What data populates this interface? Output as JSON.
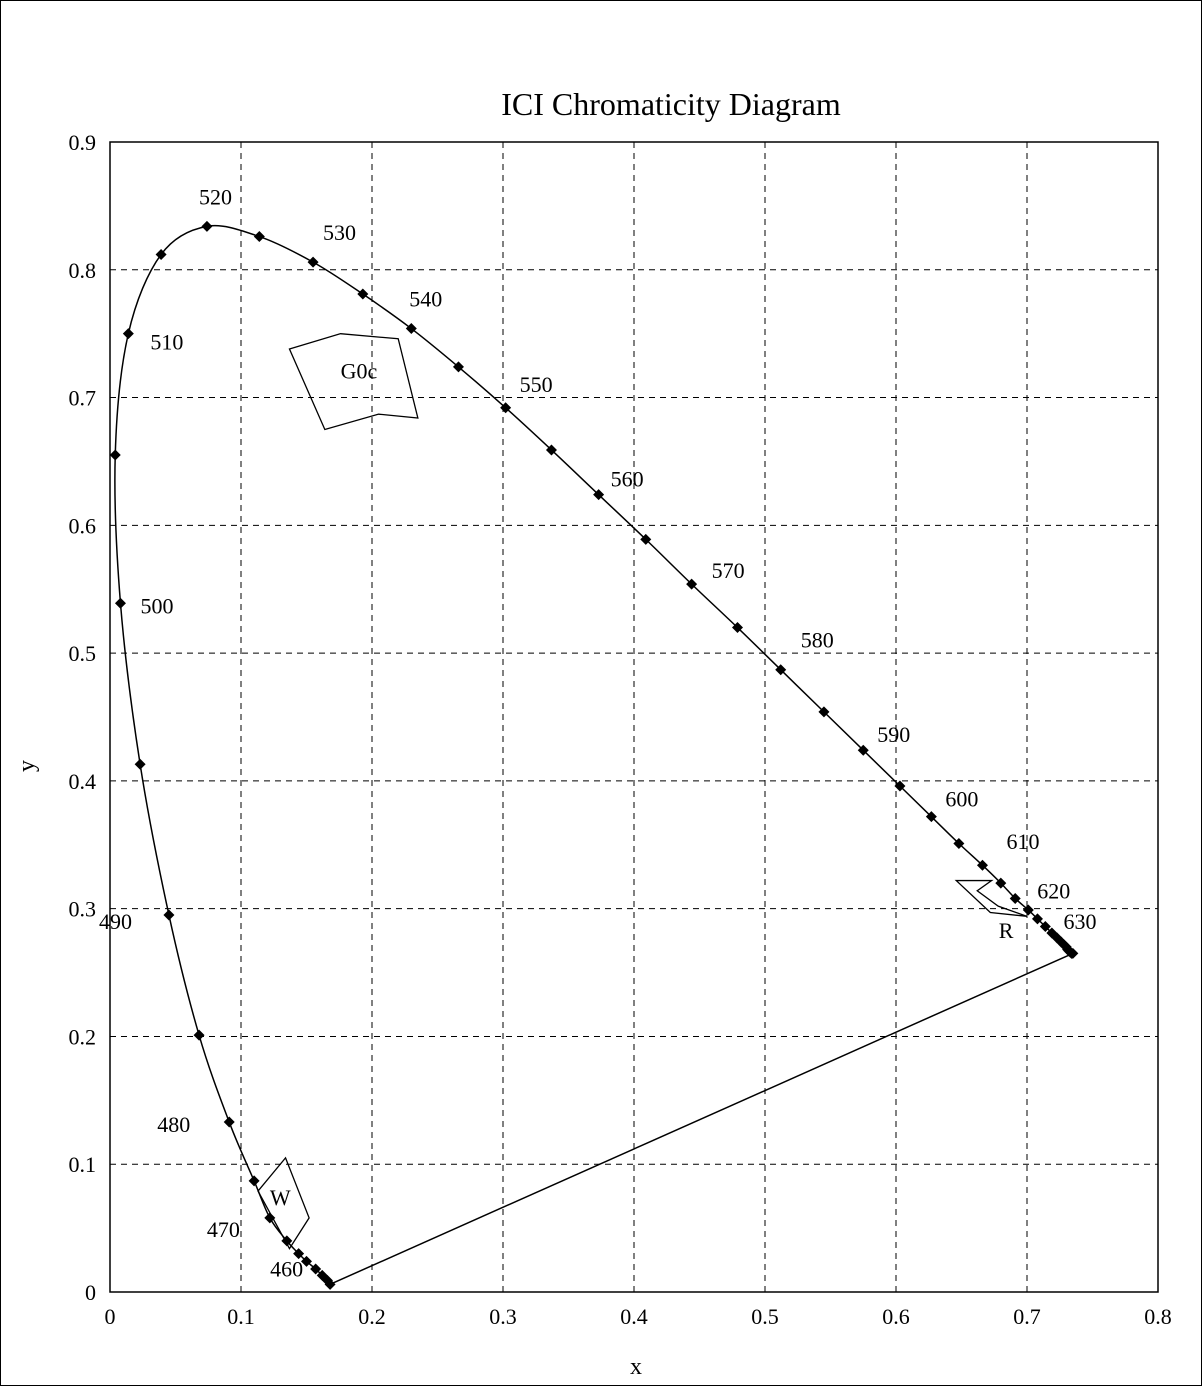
{
  "chart_data": {
    "type": "line",
    "title": "ICI Chromaticity Diagram",
    "xlabel": "x",
    "ylabel": "y",
    "xlim": [
      0,
      0.8
    ],
    "ylim": [
      0,
      0.9
    ],
    "x_ticks": [
      "0",
      "0.1",
      "0.2",
      "0.3",
      "0.4",
      "0.5",
      "0.6",
      "0.7",
      "0.8"
    ],
    "y_ticks": [
      "0",
      "0.1",
      "0.2",
      "0.3",
      "0.4",
      "0.5",
      "0.6",
      "0.7",
      "0.8",
      "0.9"
    ],
    "grid": true,
    "spectral_locus": [
      {
        "x": 0.168,
        "y": 0.006
      },
      {
        "x": 0.166,
        "y": 0.009
      },
      {
        "x": 0.162,
        "y": 0.013
      },
      {
        "x": 0.157,
        "y": 0.018
      },
      {
        "x": 0.15,
        "y": 0.024
      },
      {
        "x": 0.144,
        "y": 0.03
      },
      {
        "x": 0.135,
        "y": 0.04
      },
      {
        "x": 0.122,
        "y": 0.058
      },
      {
        "x": 0.11,
        "y": 0.087
      },
      {
        "x": 0.091,
        "y": 0.133
      },
      {
        "x": 0.068,
        "y": 0.201
      },
      {
        "x": 0.045,
        "y": 0.295
      },
      {
        "x": 0.023,
        "y": 0.413
      },
      {
        "x": 0.008,
        "y": 0.539
      },
      {
        "x": 0.004,
        "y": 0.655
      },
      {
        "x": 0.014,
        "y": 0.75
      },
      {
        "x": 0.039,
        "y": 0.812
      },
      {
        "x": 0.074,
        "y": 0.834
      },
      {
        "x": 0.114,
        "y": 0.826
      },
      {
        "x": 0.155,
        "y": 0.806
      },
      {
        "x": 0.193,
        "y": 0.781
      },
      {
        "x": 0.23,
        "y": 0.754
      },
      {
        "x": 0.266,
        "y": 0.724
      },
      {
        "x": 0.302,
        "y": 0.692
      },
      {
        "x": 0.337,
        "y": 0.659
      },
      {
        "x": 0.373,
        "y": 0.624
      },
      {
        "x": 0.409,
        "y": 0.589
      },
      {
        "x": 0.444,
        "y": 0.554
      },
      {
        "x": 0.479,
        "y": 0.52
      },
      {
        "x": 0.512,
        "y": 0.487
      },
      {
        "x": 0.545,
        "y": 0.454
      },
      {
        "x": 0.575,
        "y": 0.424
      },
      {
        "x": 0.603,
        "y": 0.396
      },
      {
        "x": 0.627,
        "y": 0.372
      },
      {
        "x": 0.648,
        "y": 0.351
      },
      {
        "x": 0.666,
        "y": 0.334
      },
      {
        "x": 0.68,
        "y": 0.32
      },
      {
        "x": 0.691,
        "y": 0.308
      },
      {
        "x": 0.701,
        "y": 0.299
      },
      {
        "x": 0.708,
        "y": 0.292
      },
      {
        "x": 0.714,
        "y": 0.286
      },
      {
        "x": 0.719,
        "y": 0.281
      },
      {
        "x": 0.723,
        "y": 0.277
      },
      {
        "x": 0.726,
        "y": 0.274
      },
      {
        "x": 0.728,
        "y": 0.272
      },
      {
        "x": 0.73,
        "y": 0.27
      },
      {
        "x": 0.731,
        "y": 0.268
      },
      {
        "x": 0.732,
        "y": 0.267
      },
      {
        "x": 0.733,
        "y": 0.266
      },
      {
        "x": 0.734,
        "y": 0.265
      },
      {
        "x": 0.735,
        "y": 0.265
      }
    ],
    "purple_line": [
      {
        "x": 0.168,
        "y": 0.006
      },
      {
        "x": 0.735,
        "y": 0.265
      }
    ],
    "wavelength_labels": [
      {
        "text": "460",
        "x": 0.168,
        "y": 0.006
      },
      {
        "text": "470",
        "x": 0.135,
        "y": 0.04
      },
      {
        "text": "480",
        "x": 0.091,
        "y": 0.133
      },
      {
        "text": "490",
        "x": 0.045,
        "y": 0.295
      },
      {
        "text": "500",
        "x": 0.008,
        "y": 0.539
      },
      {
        "text": "510",
        "x": 0.014,
        "y": 0.75
      },
      {
        "text": "520",
        "x": 0.074,
        "y": 0.834
      },
      {
        "text": "530",
        "x": 0.155,
        "y": 0.806
      },
      {
        "text": "540",
        "x": 0.23,
        "y": 0.754
      },
      {
        "text": "550",
        "x": 0.302,
        "y": 0.692
      },
      {
        "text": "560",
        "x": 0.373,
        "y": 0.624
      },
      {
        "text": "570",
        "x": 0.444,
        "y": 0.554
      },
      {
        "text": "580",
        "x": 0.512,
        "y": 0.487
      },
      {
        "text": "590",
        "x": 0.575,
        "y": 0.424
      },
      {
        "text": "600",
        "x": 0.627,
        "y": 0.372
      },
      {
        "text": "610",
        "x": 0.666,
        "y": 0.334
      },
      {
        "text": "620",
        "x": 0.691,
        "y": 0.308
      },
      {
        "text": "630",
        "x": 0.708,
        "y": 0.292
      }
    ],
    "regions": [
      {
        "label": "G0c",
        "label_at": {
          "x": 0.19,
          "y": 0.715
        },
        "polygon": [
          {
            "x": 0.137,
            "y": 0.738
          },
          {
            "x": 0.176,
            "y": 0.75
          },
          {
            "x": 0.22,
            "y": 0.746
          },
          {
            "x": 0.235,
            "y": 0.684
          },
          {
            "x": 0.205,
            "y": 0.687
          },
          {
            "x": 0.164,
            "y": 0.675
          }
        ]
      },
      {
        "label": "W",
        "label_at": {
          "x": 0.13,
          "y": 0.068
        },
        "polygon": [
          {
            "x": 0.113,
            "y": 0.079
          },
          {
            "x": 0.134,
            "y": 0.105
          },
          {
            "x": 0.152,
            "y": 0.058
          },
          {
            "x": 0.137,
            "y": 0.034
          }
        ]
      },
      {
        "label": "R",
        "label_at": {
          "x": 0.684,
          "y": 0.277
        },
        "polygon": [
          {
            "x": 0.646,
            "y": 0.322
          },
          {
            "x": 0.673,
            "y": 0.322
          },
          {
            "x": 0.662,
            "y": 0.314
          },
          {
            "x": 0.678,
            "y": 0.302
          },
          {
            "x": 0.7,
            "y": 0.294
          },
          {
            "x": 0.672,
            "y": 0.297
          }
        ]
      }
    ]
  }
}
